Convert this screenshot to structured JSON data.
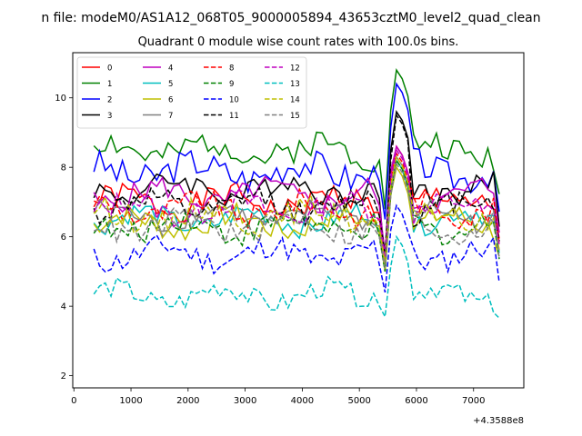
{
  "chart_data": {
    "type": "line",
    "suptitle": "n file: modeM0/AS1A12_068T05_9000005894_43653cztM0_level2_quad_clean",
    "title": "Quadrant 0 module wise count rates with 100.0s bins.",
    "x_offset_label": "+4.3588e8",
    "xlim": [
      -20,
      7880
    ],
    "ylim": [
      1.65,
      11.3
    ],
    "x_ticks": [
      0,
      1000,
      2000,
      3000,
      4000,
      5000,
      6000,
      7000
    ],
    "y_ticks": [
      2,
      4,
      6,
      8,
      10
    ],
    "legend_position": "upper-left",
    "x_start": 350,
    "x_step": 100,
    "series": [
      {
        "name": "0",
        "color": "#ff0000",
        "dash": "solid",
        "level": 7.0,
        "amp": 0.35,
        "dip": 5.5,
        "peak": 8.6
      },
      {
        "name": "1",
        "color": "#008000",
        "dash": "solid",
        "level": 8.5,
        "amp": 0.4,
        "dip": 6.8,
        "peak": 10.8
      },
      {
        "name": "2",
        "color": "#0000ff",
        "dash": "solid",
        "level": 7.9,
        "amp": 0.45,
        "dip": 6.5,
        "peak": 10.4
      },
      {
        "name": "3",
        "color": "#000000",
        "dash": "solid",
        "level": 7.4,
        "amp": 0.35,
        "dip": 5.2,
        "peak": 9.6
      },
      {
        "name": "4",
        "color": "#bf00bf",
        "dash": "solid",
        "level": 7.2,
        "amp": 0.35,
        "dip": 5.5,
        "peak": 8.6
      },
      {
        "name": "5",
        "color": "#00bfbf",
        "dash": "solid",
        "level": 6.5,
        "amp": 0.3,
        "dip": 5.4,
        "peak": 8.2
      },
      {
        "name": "6",
        "color": "#bfbf00",
        "dash": "solid",
        "level": 6.4,
        "amp": 0.35,
        "dip": 5.0,
        "peak": 8.0
      },
      {
        "name": "7",
        "color": "#808080",
        "dash": "solid",
        "level": 6.6,
        "amp": 0.3,
        "dip": 5.3,
        "peak": 8.3
      },
      {
        "name": "8",
        "color": "#ff0000",
        "dash": "dashed",
        "level": 6.8,
        "amp": 0.35,
        "dip": 5.4,
        "peak": 8.4
      },
      {
        "name": "9",
        "color": "#008000",
        "dash": "dashed",
        "level": 6.3,
        "amp": 0.35,
        "dip": 5.0,
        "peak": 8.2
      },
      {
        "name": "10",
        "color": "#0000ff",
        "dash": "dashed",
        "level": 5.5,
        "amp": 0.35,
        "dip": 4.4,
        "peak": 6.9
      },
      {
        "name": "11",
        "color": "#000000",
        "dash": "dashed",
        "level": 6.9,
        "amp": 0.35,
        "dip": 5.5,
        "peak": 9.5
      },
      {
        "name": "12",
        "color": "#bf00bf",
        "dash": "dashed",
        "level": 6.8,
        "amp": 0.35,
        "dip": 5.4,
        "peak": 8.5
      },
      {
        "name": "13",
        "color": "#00bfbf",
        "dash": "dashed",
        "level": 4.3,
        "amp": 0.3,
        "dip": 3.7,
        "peak": 6.0
      },
      {
        "name": "14",
        "color": "#bfbf00",
        "dash": "dashed",
        "level": 6.6,
        "amp": 0.35,
        "dip": 5.2,
        "peak": 8.3
      },
      {
        "name": "15",
        "color": "#808080",
        "dash": "dashed",
        "level": 6.3,
        "amp": 0.35,
        "dip": 5.1,
        "peak": 8.1
      }
    ]
  }
}
